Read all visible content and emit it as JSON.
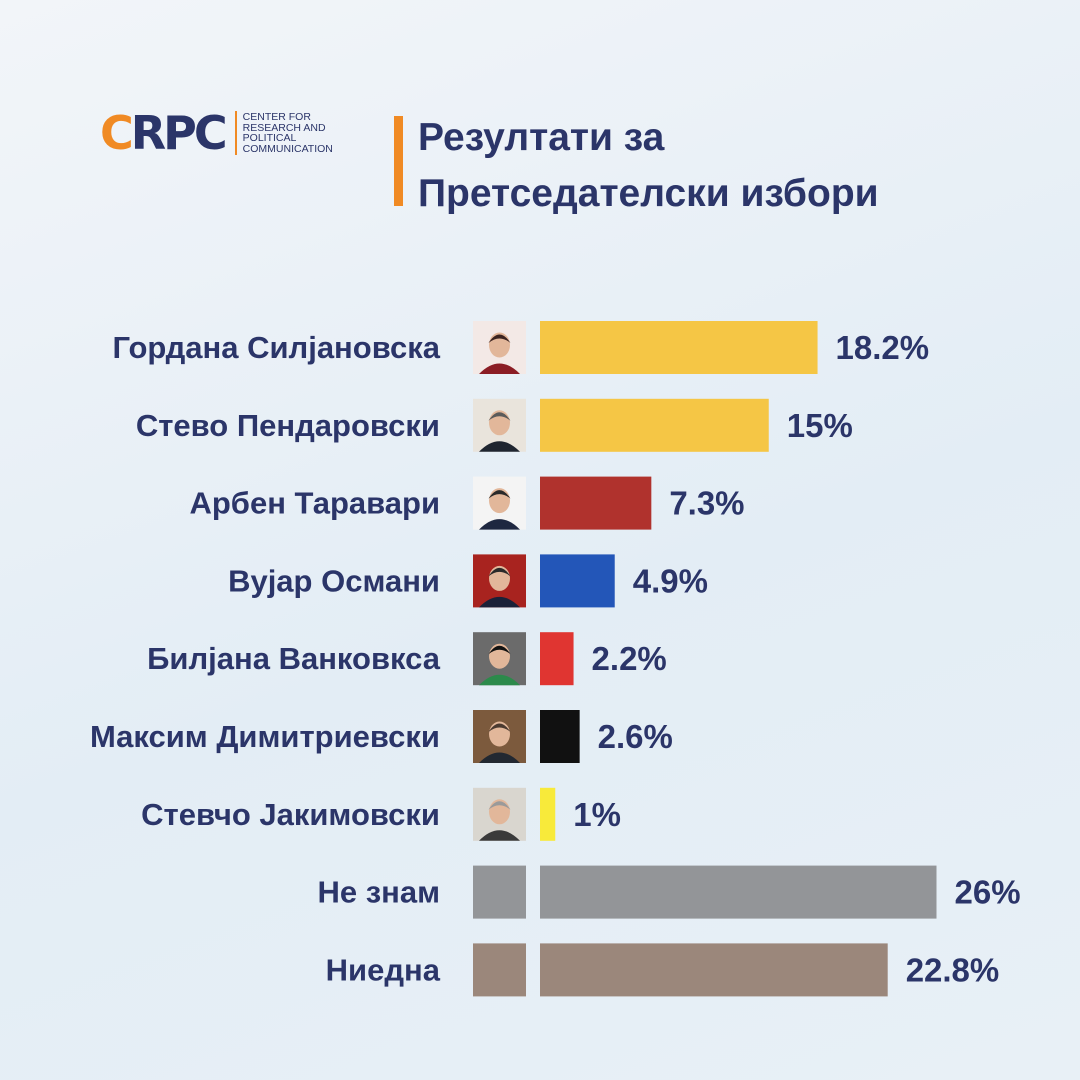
{
  "logo": {
    "mark_c": "C",
    "mark_rest": "RPC",
    "lines": [
      "CENTER FOR",
      "RESEARCH AND",
      "POLITICAL",
      "COMMUNICATION"
    ]
  },
  "title_lines": [
    "Резултати за",
    "Претседателски избори"
  ],
  "colors": {
    "title": "#2b3569",
    "accent": "#f08a24"
  },
  "chart_data": {
    "type": "bar",
    "orientation": "horizontal",
    "categories": [
      "Гордана Силјановска",
      "Стево Пендаровски",
      "Арбен Таравари",
      "Вујар Османи",
      "Билјана Ванковкса",
      "Максим Димитриевски",
      "Стевчо Јакимовски",
      "Не знам",
      "Ниедна"
    ],
    "values": [
      18.2,
      15,
      7.3,
      4.9,
      2.2,
      2.6,
      1,
      26,
      22.8
    ],
    "value_labels": [
      "18.2%",
      "15%",
      "7.3%",
      "4.9%",
      "2.2%",
      "2.6%",
      "1%",
      "26%",
      "22.8%"
    ],
    "bar_colors": [
      "#f5c645",
      "#f5c645",
      "#b0322d",
      "#2356b8",
      "#e03531",
      "#111111",
      "#f8ea3a",
      "#939598",
      "#9b877b"
    ],
    "thumbnails": [
      "portrait",
      "portrait",
      "portrait",
      "portrait",
      "portrait",
      "portrait",
      "portrait",
      "gray-swatch",
      "taupe-swatch"
    ],
    "unit": "%",
    "grid": false,
    "legend": "none"
  }
}
